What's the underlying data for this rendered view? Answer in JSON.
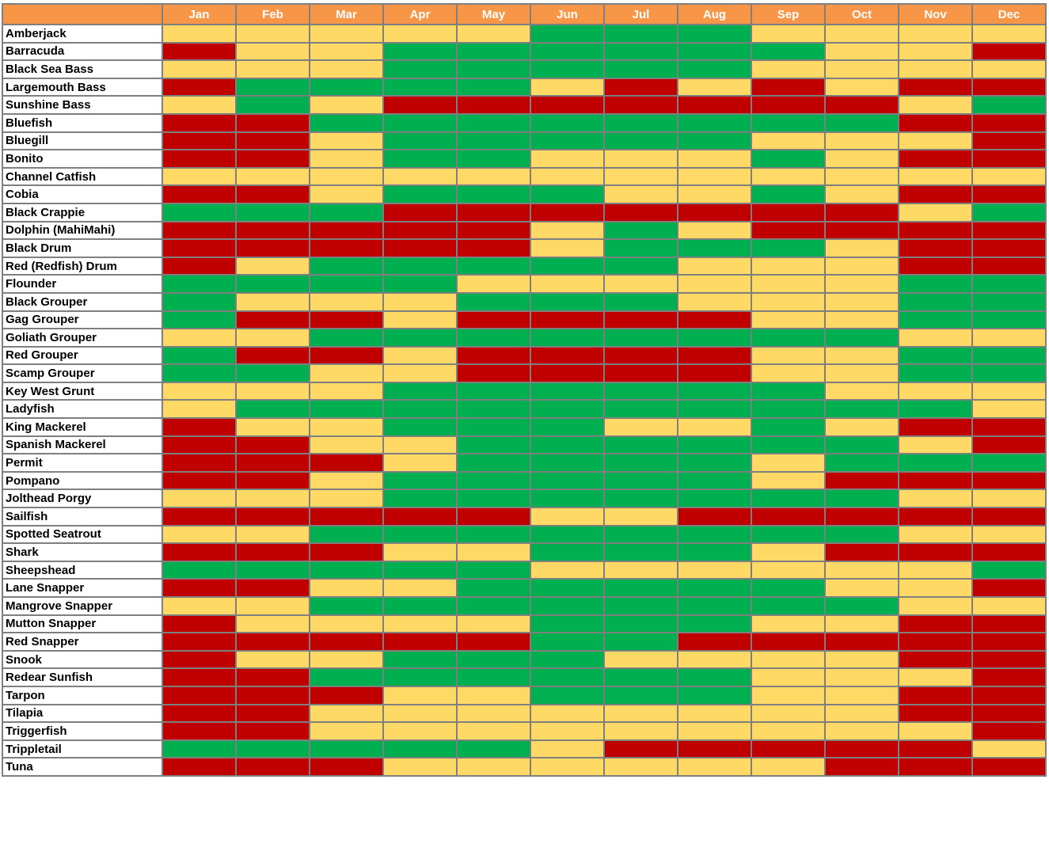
{
  "chart_data": {
    "type": "heatmap",
    "title": "",
    "x": [
      "Jan",
      "Feb",
      "Mar",
      "Apr",
      "May",
      "Jun",
      "Jul",
      "Aug",
      "Sep",
      "Oct",
      "Nov",
      "Dec"
    ],
    "y": [
      "Amberjack",
      "Barracuda",
      "Black Sea Bass",
      "Largemouth Bass",
      "Sunshine Bass",
      "Bluefish",
      "Bluegill",
      "Bonito",
      "Channel Catfish",
      "Cobia",
      "Black Crappie",
      "Dolphin (MahiMahi)",
      "Black Drum",
      "Red (Redfish) Drum",
      "Flounder",
      "Black Grouper",
      "Gag Grouper",
      "Goliath Grouper",
      "Red Grouper",
      "Scamp Grouper",
      "Key West Grunt",
      "Ladyfish",
      "King Mackerel",
      "Spanish Mackerel",
      "Permit",
      "Pompano",
      "Jolthead Porgy",
      "Sailfish",
      "Spotted Seatrout",
      "Shark",
      "Sheepshead",
      "Lane Snapper",
      "Mangrove Snapper",
      "Mutton Snapper",
      "Red Snapper",
      "Snook",
      "Redear Sunfish",
      "Tarpon",
      "Tilapia",
      "Triggerfish",
      "Trippletail",
      "Tuna"
    ],
    "levels": [
      "red",
      "yellow",
      "green"
    ],
    "values": [
      [
        1,
        1,
        1,
        1,
        1,
        2,
        2,
        2,
        1,
        1,
        1,
        1
      ],
      [
        0,
        1,
        1,
        2,
        2,
        2,
        2,
        2,
        2,
        1,
        1,
        0
      ],
      [
        1,
        1,
        1,
        2,
        2,
        2,
        2,
        2,
        1,
        1,
        1,
        1
      ],
      [
        0,
        2,
        2,
        2,
        2,
        1,
        0,
        1,
        0,
        1,
        0,
        0
      ],
      [
        1,
        2,
        1,
        0,
        0,
        0,
        0,
        0,
        0,
        0,
        1,
        2
      ],
      [
        0,
        0,
        2,
        2,
        2,
        2,
        2,
        2,
        2,
        2,
        0,
        0
      ],
      [
        0,
        0,
        1,
        2,
        2,
        2,
        2,
        2,
        1,
        1,
        1,
        0
      ],
      [
        0,
        0,
        1,
        2,
        2,
        1,
        1,
        1,
        2,
        1,
        0,
        0
      ],
      [
        1,
        1,
        1,
        1,
        1,
        1,
        1,
        1,
        1,
        1,
        1,
        1
      ],
      [
        0,
        0,
        1,
        2,
        2,
        2,
        1,
        1,
        2,
        1,
        0,
        0
      ],
      [
        2,
        2,
        2,
        0,
        0,
        0,
        0,
        0,
        0,
        0,
        1,
        2
      ],
      [
        0,
        0,
        0,
        0,
        0,
        1,
        2,
        1,
        0,
        0,
        0,
        0
      ],
      [
        0,
        0,
        0,
        0,
        0,
        1,
        2,
        2,
        2,
        1,
        0,
        0
      ],
      [
        0,
        1,
        2,
        2,
        2,
        2,
        2,
        1,
        1,
        1,
        0,
        0
      ],
      [
        2,
        2,
        2,
        2,
        1,
        1,
        1,
        1,
        1,
        1,
        2,
        2
      ],
      [
        2,
        1,
        1,
        1,
        2,
        2,
        2,
        1,
        1,
        1,
        2,
        2
      ],
      [
        2,
        0,
        0,
        1,
        0,
        0,
        0,
        0,
        1,
        1,
        2,
        2
      ],
      [
        1,
        1,
        2,
        2,
        2,
        2,
        2,
        2,
        2,
        2,
        1,
        1
      ],
      [
        2,
        0,
        0,
        1,
        0,
        0,
        0,
        0,
        1,
        1,
        2,
        2
      ],
      [
        2,
        2,
        1,
        1,
        0,
        0,
        0,
        0,
        1,
        1,
        2,
        2
      ],
      [
        1,
        1,
        1,
        2,
        2,
        2,
        2,
        2,
        2,
        1,
        1,
        1
      ],
      [
        1,
        2,
        2,
        2,
        2,
        2,
        2,
        2,
        2,
        2,
        2,
        1
      ],
      [
        0,
        1,
        1,
        2,
        2,
        2,
        1,
        1,
        2,
        1,
        0,
        0
      ],
      [
        0,
        0,
        1,
        1,
        2,
        2,
        2,
        2,
        2,
        2,
        1,
        0
      ],
      [
        0,
        0,
        0,
        1,
        2,
        2,
        2,
        2,
        1,
        2,
        2,
        2
      ],
      [
        0,
        0,
        1,
        2,
        2,
        2,
        2,
        2,
        1,
        0,
        0,
        0
      ],
      [
        1,
        1,
        1,
        2,
        2,
        2,
        2,
        2,
        2,
        2,
        1,
        1
      ],
      [
        0,
        0,
        0,
        0,
        0,
        1,
        1,
        0,
        0,
        0,
        0,
        0
      ],
      [
        1,
        1,
        2,
        2,
        2,
        2,
        2,
        2,
        2,
        2,
        1,
        1
      ],
      [
        0,
        0,
        0,
        1,
        1,
        2,
        2,
        2,
        1,
        0,
        0,
        0
      ],
      [
        2,
        2,
        2,
        2,
        2,
        1,
        1,
        1,
        1,
        1,
        1,
        2
      ],
      [
        0,
        0,
        1,
        1,
        2,
        2,
        2,
        2,
        2,
        1,
        1,
        0
      ],
      [
        1,
        1,
        2,
        2,
        2,
        2,
        2,
        2,
        2,
        2,
        1,
        1
      ],
      [
        0,
        1,
        1,
        1,
        1,
        2,
        2,
        2,
        1,
        1,
        0,
        0
      ],
      [
        0,
        0,
        0,
        0,
        0,
        2,
        2,
        0,
        0,
        0,
        0,
        0
      ],
      [
        0,
        1,
        1,
        2,
        2,
        2,
        1,
        1,
        1,
        1,
        0,
        0
      ],
      [
        0,
        0,
        2,
        2,
        2,
        2,
        2,
        2,
        1,
        1,
        1,
        0
      ],
      [
        0,
        0,
        0,
        1,
        1,
        2,
        2,
        2,
        1,
        1,
        0,
        0
      ],
      [
        0,
        0,
        1,
        1,
        1,
        1,
        1,
        1,
        1,
        1,
        0,
        0
      ],
      [
        0,
        0,
        1,
        1,
        1,
        1,
        1,
        1,
        1,
        1,
        1,
        0
      ],
      [
        2,
        2,
        2,
        2,
        2,
        1,
        0,
        0,
        0,
        0,
        0,
        1
      ],
      [
        0,
        0,
        0,
        1,
        1,
        1,
        1,
        1,
        1,
        0,
        0,
        0
      ]
    ]
  },
  "colors": {
    "header_bg": "#F79646",
    "red": "#C00000",
    "yellow": "#FFD966",
    "green": "#00B050",
    "border": "#7F7F7F"
  }
}
